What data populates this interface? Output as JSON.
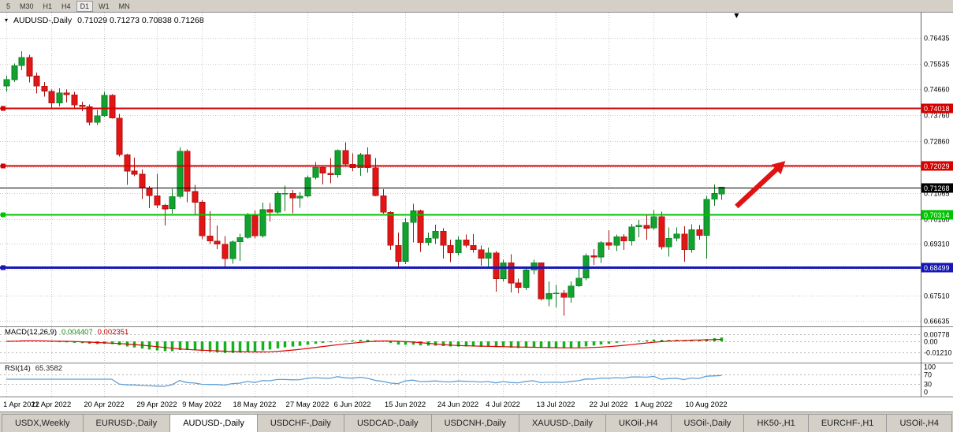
{
  "toolbar": {
    "timeframes": [
      "5",
      "M30",
      "H1",
      "H4",
      "D1",
      "W1",
      "MN"
    ],
    "active": "D1"
  },
  "chart_header": {
    "dropdown_icon": "▾",
    "symbol": "AUDUSD-,Daily",
    "ohlc": "0.71029 0.71273 0.70838 0.71268"
  },
  "indicators": {
    "macd": {
      "label": "MACD(12,26,9)",
      "main": "0.004407",
      "signal": "0.002351"
    },
    "rsi": {
      "label": "RSI(14)",
      "value": "65.3582"
    }
  },
  "bottom_tabs": [
    {
      "label": "USDX,Weekly"
    },
    {
      "label": "EURUSD-,Daily"
    },
    {
      "label": "AUDUSD-,Daily",
      "active": true
    },
    {
      "label": "USDCHF-,Daily"
    },
    {
      "label": "USDCAD-,Daily"
    },
    {
      "label": "USDCNH-,Daily"
    },
    {
      "label": "XAUUSD-,Daily"
    },
    {
      "label": "UKOil-,H4"
    },
    {
      "label": "USOil-,Daily"
    },
    {
      "label": "HK50-,H1"
    },
    {
      "label": "EURCHF-,H1"
    },
    {
      "label": "USOil-,H4"
    }
  ],
  "colors": {
    "bull": "#12a22e",
    "bull_edge": "#0a7a20",
    "bear": "#e31515",
    "bear_edge": "#a80f0f",
    "grid": "#c9c9c9",
    "macd_hist": "#17b01e",
    "macd_signal": "#dd0000",
    "rsi_line": "#5f9fd6",
    "arrow": "#e21212",
    "chrome": "#d4d0c8"
  },
  "chart_data": {
    "type": "candlestick",
    "title": "AUDUSD-,Daily",
    "ohlc_current": {
      "open": 0.71029,
      "high": 0.71273,
      "low": 0.70838,
      "close": 0.71268
    },
    "ylim": [
      0.6642,
      0.7732
    ],
    "price_axis": [
      0.76435,
      0.75535,
      0.7466,
      0.7376,
      0.7286,
      0.7196,
      0.71065,
      0.7016,
      0.6931,
      0.6841,
      0.6751,
      0.66635
    ],
    "x_labels": [
      {
        "i": 0,
        "t": "1 Apr 2022"
      },
      {
        "i": 6,
        "t": "11 Apr 2022"
      },
      {
        "i": 13,
        "t": "20 Apr 2022"
      },
      {
        "i": 20,
        "t": "29 Apr 2022"
      },
      {
        "i": 26,
        "t": "9 May 2022"
      },
      {
        "i": 33,
        "t": "18 May 2022"
      },
      {
        "i": 40,
        "t": "27 May 2022"
      },
      {
        "i": 46,
        "t": "6 Jun 2022"
      },
      {
        "i": 53,
        "t": "15 Jun 2022"
      },
      {
        "i": 60,
        "t": "24 Jun 2022"
      },
      {
        "i": 66,
        "t": "4 Jul 2022"
      },
      {
        "i": 73,
        "t": "13 Jul 2022"
      },
      {
        "i": 80,
        "t": "22 Jul 2022"
      },
      {
        "i": 86,
        "t": "1 Aug 2022"
      },
      {
        "i": 93,
        "t": "10 Aug 2022"
      }
    ],
    "candles": [
      [
        0.7478,
        0.7513,
        0.7458,
        0.75
      ],
      [
        0.75,
        0.7556,
        0.7491,
        0.7548
      ],
      [
        0.7548,
        0.7598,
        0.7533,
        0.7577
      ],
      [
        0.7577,
        0.7586,
        0.749,
        0.7512
      ],
      [
        0.7512,
        0.7524,
        0.7452,
        0.7477
      ],
      [
        0.7477,
        0.7491,
        0.7441,
        0.746
      ],
      [
        0.746,
        0.7466,
        0.7399,
        0.7419
      ],
      [
        0.7419,
        0.747,
        0.7407,
        0.7454
      ],
      [
        0.7454,
        0.7466,
        0.7421,
        0.7447
      ],
      [
        0.7447,
        0.7458,
        0.7398,
        0.7412
      ],
      [
        0.7412,
        0.7423,
        0.739,
        0.7406
      ],
      [
        0.7406,
        0.7414,
        0.7342,
        0.7352
      ],
      [
        0.7352,
        0.7394,
        0.7343,
        0.7375
      ],
      [
        0.7375,
        0.7458,
        0.7372,
        0.7446
      ],
      [
        0.7446,
        0.7449,
        0.7364,
        0.7367
      ],
      [
        0.7367,
        0.7381,
        0.7233,
        0.724
      ],
      [
        0.724,
        0.7243,
        0.7135,
        0.7183
      ],
      [
        0.7183,
        0.7229,
        0.7165,
        0.7172
      ],
      [
        0.7172,
        0.7188,
        0.7086,
        0.7125
      ],
      [
        0.7125,
        0.7131,
        0.7054,
        0.7097
      ],
      [
        0.7097,
        0.7173,
        0.7055,
        0.7065
      ],
      [
        0.7065,
        0.707,
        0.6995,
        0.7052
      ],
      [
        0.7052,
        0.7122,
        0.7035,
        0.7095
      ],
      [
        0.7095,
        0.7265,
        0.7088,
        0.7252
      ],
      [
        0.7252,
        0.7258,
        0.7075,
        0.7112
      ],
      [
        0.7112,
        0.7135,
        0.703,
        0.7075
      ],
      [
        0.7075,
        0.7082,
        0.6946,
        0.6958
      ],
      [
        0.6958,
        0.7043,
        0.693,
        0.694
      ],
      [
        0.694,
        0.6994,
        0.6913,
        0.693
      ],
      [
        0.693,
        0.6957,
        0.685,
        0.6879
      ],
      [
        0.6879,
        0.6942,
        0.6862,
        0.6938
      ],
      [
        0.6938,
        0.6966,
        0.6872,
        0.6953
      ],
      [
        0.6953,
        0.7038,
        0.6948,
        0.7028
      ],
      [
        0.7028,
        0.7046,
        0.695,
        0.6958
      ],
      [
        0.6958,
        0.7073,
        0.6952,
        0.7049
      ],
      [
        0.7049,
        0.7072,
        0.7008,
        0.704
      ],
      [
        0.704,
        0.7113,
        0.7035,
        0.7105
      ],
      [
        0.7105,
        0.7133,
        0.7044,
        0.7106
      ],
      [
        0.7106,
        0.7117,
        0.7037,
        0.7089
      ],
      [
        0.7089,
        0.7111,
        0.7056,
        0.7096
      ],
      [
        0.7096,
        0.7168,
        0.7092,
        0.716
      ],
      [
        0.716,
        0.7214,
        0.7154,
        0.7196
      ],
      [
        0.7196,
        0.7202,
        0.7137,
        0.7175
      ],
      [
        0.7175,
        0.7228,
        0.714,
        0.717
      ],
      [
        0.717,
        0.7258,
        0.716,
        0.7255
      ],
      [
        0.7255,
        0.7283,
        0.72,
        0.7207
      ],
      [
        0.7207,
        0.7244,
        0.7183,
        0.7195
      ],
      [
        0.7195,
        0.7246,
        0.7166,
        0.7239
      ],
      [
        0.7239,
        0.7265,
        0.7178,
        0.7195
      ],
      [
        0.7195,
        0.7228,
        0.7095,
        0.7098
      ],
      [
        0.7098,
        0.712,
        0.7035,
        0.704
      ],
      [
        0.704,
        0.7043,
        0.691,
        0.6925
      ],
      [
        0.6925,
        0.697,
        0.685,
        0.687
      ],
      [
        0.687,
        0.702,
        0.6861,
        0.7005
      ],
      [
        0.7005,
        0.7069,
        0.6935,
        0.7045
      ],
      [
        0.7045,
        0.7049,
        0.6903,
        0.6935
      ],
      [
        0.6935,
        0.697,
        0.6925,
        0.695
      ],
      [
        0.695,
        0.6997,
        0.693,
        0.6975
      ],
      [
        0.6975,
        0.6985,
        0.688,
        0.6925
      ],
      [
        0.6925,
        0.6945,
        0.6867,
        0.69
      ],
      [
        0.69,
        0.6956,
        0.689,
        0.6945
      ],
      [
        0.6945,
        0.6963,
        0.6918,
        0.6925
      ],
      [
        0.6925,
        0.6965,
        0.69,
        0.691
      ],
      [
        0.691,
        0.6925,
        0.6855,
        0.688
      ],
      [
        0.688,
        0.6918,
        0.685,
        0.69
      ],
      [
        0.69,
        0.6905,
        0.6765,
        0.681
      ],
      [
        0.681,
        0.6875,
        0.68,
        0.6865
      ],
      [
        0.6865,
        0.6895,
        0.6762,
        0.6795
      ],
      [
        0.6795,
        0.681,
        0.676,
        0.678
      ],
      [
        0.678,
        0.6848,
        0.6771,
        0.684
      ],
      [
        0.684,
        0.6876,
        0.6825,
        0.6865
      ],
      [
        0.6865,
        0.6866,
        0.6735,
        0.674
      ],
      [
        0.674,
        0.68,
        0.6715,
        0.6758
      ],
      [
        0.6758,
        0.6788,
        0.671,
        0.676
      ],
      [
        0.676,
        0.677,
        0.6682,
        0.6745
      ],
      [
        0.6745,
        0.68,
        0.6727,
        0.6785
      ],
      [
        0.6785,
        0.685,
        0.6782,
        0.6812
      ],
      [
        0.6812,
        0.6898,
        0.6805,
        0.689
      ],
      [
        0.689,
        0.6912,
        0.6858,
        0.6885
      ],
      [
        0.6885,
        0.694,
        0.6865,
        0.6935
      ],
      [
        0.6935,
        0.6978,
        0.691,
        0.6925
      ],
      [
        0.6925,
        0.6963,
        0.6905,
        0.6955
      ],
      [
        0.6955,
        0.6965,
        0.691,
        0.694
      ],
      [
        0.694,
        0.7,
        0.6925,
        0.699
      ],
      [
        0.699,
        0.7013,
        0.6953,
        0.6995
      ],
      [
        0.6995,
        0.7032,
        0.6945,
        0.6985
      ],
      [
        0.6985,
        0.7047,
        0.698,
        0.7025
      ],
      [
        0.7025,
        0.7042,
        0.6911,
        0.692
      ],
      [
        0.692,
        0.6988,
        0.6886,
        0.695
      ],
      [
        0.695,
        0.6987,
        0.694,
        0.6965
      ],
      [
        0.6965,
        0.6991,
        0.6869,
        0.691
      ],
      [
        0.691,
        0.6998,
        0.69,
        0.698
      ],
      [
        0.698,
        0.6996,
        0.6945,
        0.696
      ],
      [
        0.696,
        0.7097,
        0.688,
        0.7085
      ],
      [
        0.7085,
        0.7136,
        0.7063,
        0.7105
      ],
      [
        0.71029,
        0.71273,
        0.70838,
        0.71268
      ]
    ],
    "hlines": [
      {
        "label": "0.74018",
        "price": 0.74018,
        "color": "#d60000",
        "width": 2,
        "handle": true
      },
      {
        "label": "0.72029",
        "price": 0.72029,
        "color": "#d60000",
        "width": 2,
        "handle": true
      },
      {
        "label": "0.71268",
        "price": 0.71268,
        "color": "#000000",
        "width": 1,
        "handle": false
      },
      {
        "label": "0.70314",
        "price": 0.70314,
        "color": "#00c400",
        "width": 2,
        "handle": true
      },
      {
        "label": "0.68499",
        "price": 0.68499,
        "color": "#1717b7",
        "width": 3,
        "handle": true
      }
    ],
    "macd": {
      "label": "MACD(12,26,9)",
      "value_main": 0.004407,
      "value_signal": 0.002351,
      "axis": [
        {
          "v": 0.00778,
          "t": "0.00778"
        },
        {
          "v": 0,
          "t": "0.00"
        },
        {
          "v": -0.0121,
          "t": "-0.01210"
        }
      ]
    },
    "rsi": {
      "label": "RSI(14)",
      "value": 65.3582,
      "axis": [
        {
          "v": 100,
          "t": "100"
        },
        {
          "v": 70,
          "t": "70"
        },
        {
          "v": 30,
          "t": "30"
        },
        {
          "v": 0,
          "t": "0"
        }
      ],
      "level_lines": [
        70,
        30
      ]
    },
    "arrow": {
      "i1": 97,
      "p1": 0.706,
      "i2": 103.5,
      "p2": 0.7218
    },
    "top_marker_index": 97
  }
}
